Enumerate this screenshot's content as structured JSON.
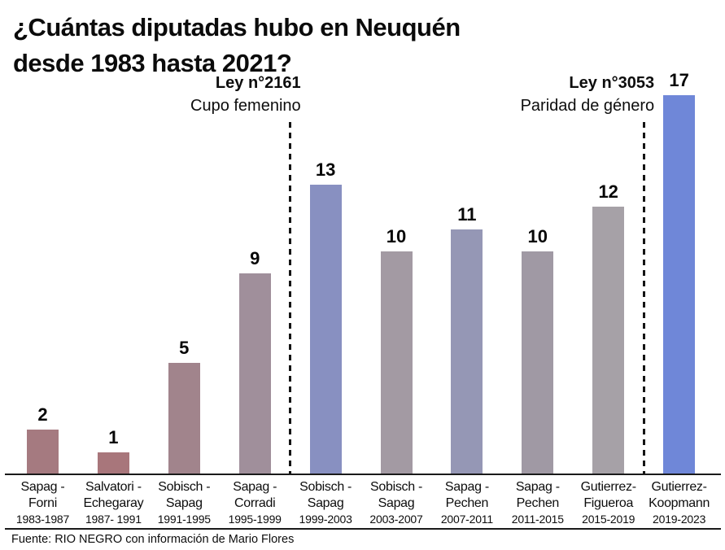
{
  "header": {
    "title_line1": "¿Cuántas diputadas hubo en Neuquén",
    "title_line2": "desde 1983 hasta 2021?"
  },
  "chart_data": {
    "type": "bar",
    "title": "¿Cuántas diputadas hubo en Neuquén desde 1983 hasta 2021?",
    "categories": [
      {
        "line1": "Sapag -",
        "line2": "Forni",
        "period": "1983-1987"
      },
      {
        "line1": "Salvatori -",
        "line2": "Echegaray",
        "period": "1987- 1991"
      },
      {
        "line1": "Sobisch -",
        "line2": "Sapag",
        "period": "1991-1995"
      },
      {
        "line1": "Sapag -",
        "line2": "Corradi",
        "period": "1995-1999"
      },
      {
        "line1": "Sobisch -",
        "line2": "Sapag",
        "period": "1999-2003"
      },
      {
        "line1": "Sobisch -",
        "line2": "Sapag",
        "period": "2003-2007"
      },
      {
        "line1": "Sapag -",
        "line2": "Pechen",
        "period": "2007-2011"
      },
      {
        "line1": "Sapag -",
        "line2": "Pechen",
        "period": "2011-2015"
      },
      {
        "line1": "Gutierrez-",
        "line2": "Figueroa",
        "period": "2015-2019"
      },
      {
        "line1": "Gutierrez-",
        "line2": "Koopmann",
        "period": "2019-2023"
      }
    ],
    "values": [
      2,
      1,
      5,
      9,
      13,
      10,
      11,
      10,
      12,
      17
    ],
    "bar_colors": [
      "#a57a80",
      "#a8767b",
      "#a1848c",
      "#a08f9b",
      "#8890c1",
      "#a39aa3",
      "#9597b5",
      "#a099a4",
      "#a6a1a7",
      "#6f87d8"
    ],
    "ylim": [
      0,
      17
    ],
    "grid": false,
    "value_labels": true,
    "legend": null,
    "reference_lines": [
      {
        "between": [
          "1995-1999",
          "1999-2003"
        ],
        "label": "Ley n°2161",
        "sublabel": "Cupo femenino"
      },
      {
        "between": [
          "2015-2019",
          "2019-2023"
        ],
        "label": "Ley n°3053",
        "sublabel": "Paridad de género"
      }
    ]
  },
  "footer": {
    "source": "Fuente: RIO NEGRO con información de Mario Flores"
  }
}
